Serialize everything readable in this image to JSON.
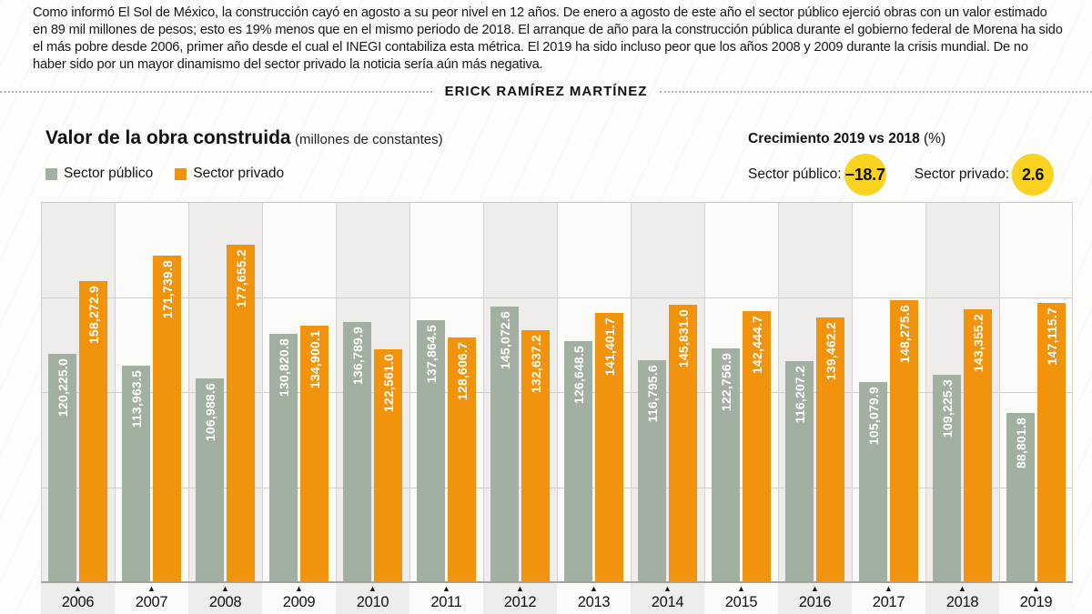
{
  "intro": {
    "paragraph": "Como informó El Sol de México, la construcción cayó en agosto a su peor nivel en 12 años. De enero a agosto de este año el sector público ejerció obras con un valor estimado en 89 mil millones de pesos; esto es 19% menos que en el mismo periodo de 2018. El arranque de año para la construcción pública durante el gobierno federal de Morena ha sido el más pobre desde 2006, primer año desde el cual el INEGI contabiliza esta métrica. El 2019 ha sido incluso peor que los años 2008 y 2009 durante la crisis mundial. De no haber sido por un mayor dinamismo del sector privado la noticia sería aún más negativa.",
    "byline": "ERICK RAMÍREZ MARTÍNEZ"
  },
  "header": {
    "title": "Valor de la obra construida",
    "subtitle": "(millones de constantes)"
  },
  "growth": {
    "title": "Crecimiento 2019 vs 2018",
    "title_suffix": "(%)",
    "badge_color": "#f9d320",
    "items": [
      {
        "label": "Sector público:",
        "value": "−18.7"
      },
      {
        "label": "Sector privado:",
        "value": "2.6"
      }
    ]
  },
  "chart_data": {
    "type": "bar",
    "title": "Valor de la obra construida (millones de constantes)",
    "categories": [
      "2006",
      "2007",
      "2008",
      "2009",
      "2010",
      "2011",
      "2012",
      "2013",
      "2014",
      "2015",
      "2016",
      "2017",
      "2018",
      "2019"
    ],
    "series": [
      {
        "name": "Sector público",
        "color": "#a1b0a1",
        "values": [
          120225.0,
          113963.5,
          106988.6,
          130820.8,
          136789.9,
          137864.5,
          145072.6,
          126648.5,
          116795.6,
          122756.9,
          116207.2,
          105079.9,
          109225.3,
          88801.8
        ]
      },
      {
        "name": "Sector privado",
        "color": "#f2930d",
        "values": [
          158272.9,
          171739.8,
          177655.2,
          134900.1,
          122561.0,
          128606.7,
          132637.2,
          141401.7,
          145831.0,
          142444.7,
          139462.2,
          148275.6,
          143355.2,
          147115.7
        ]
      }
    ],
    "ylim": [
      0,
      200000
    ],
    "gridline_values": [
      50000,
      100000,
      150000
    ],
    "grid": "horizontal lines + vertical year separators, alternating column shading",
    "legend_position": "top-left",
    "value_labels": "rotated 90°, white bold, thousands commas, one decimal",
    "x_axis_marker": "▲"
  }
}
